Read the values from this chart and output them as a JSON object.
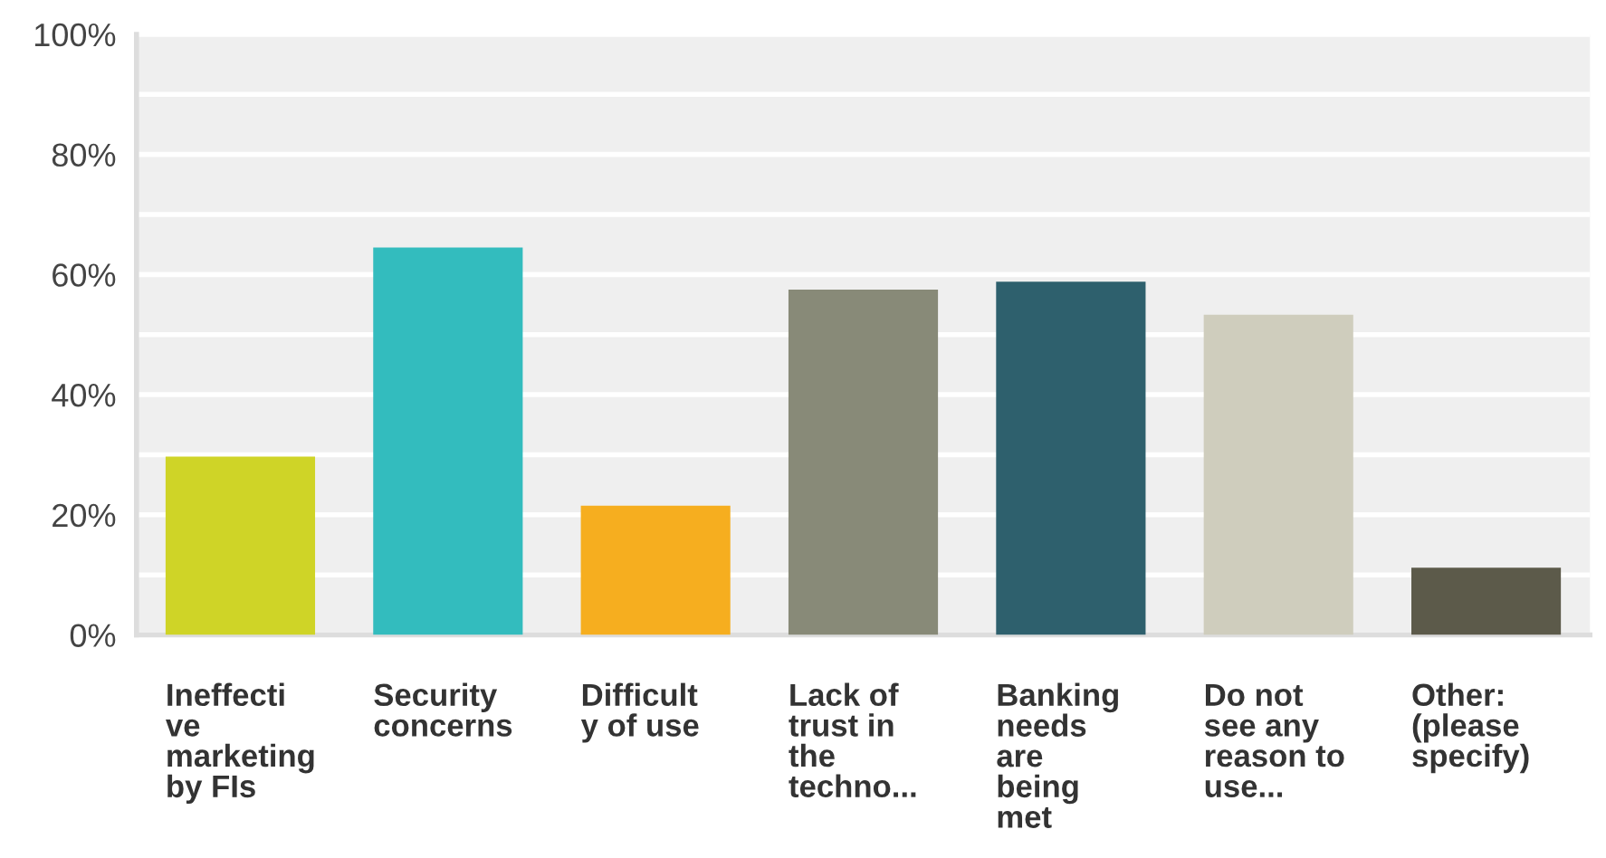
{
  "chart_data": {
    "type": "bar",
    "categories": [
      "Ineffecti\nve\nmarketing\nby FIs",
      "Security\nconcerns",
      "Difficult\ny of use",
      "Lack of\ntrust in\nthe\ntechno...",
      "Banking\nneeds\nare\nbeing\nmet",
      "Do not\nsee any\nreason to\nuse...",
      "Other:\n(please\nspecify)"
    ],
    "values": [
      29.7,
      64.5,
      21.5,
      57.5,
      58.8,
      53.3,
      11.2
    ],
    "colors": [
      "#cfd427",
      "#33bcbe",
      "#f6ae1f",
      "#888a78",
      "#2e606d",
      "#cfcdbd",
      "#5c5a4a"
    ],
    "ylim": [
      0,
      100
    ],
    "yticks": [
      {
        "value": 0,
        "label": "0%"
      },
      {
        "value": 10,
        "label": null
      },
      {
        "value": 20,
        "label": "20%"
      },
      {
        "value": 30,
        "label": null
      },
      {
        "value": 40,
        "label": "40%"
      },
      {
        "value": 50,
        "label": null
      },
      {
        "value": 60,
        "label": "60%"
      },
      {
        "value": 70,
        "label": null
      },
      {
        "value": 80,
        "label": "80%"
      },
      {
        "value": 90,
        "label": null
      },
      {
        "value": 100,
        "label": "100%"
      }
    ],
    "grid": "y"
  }
}
